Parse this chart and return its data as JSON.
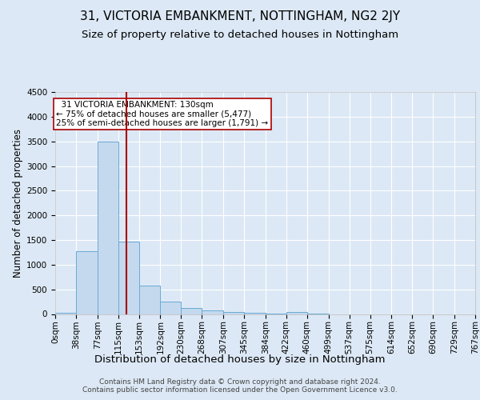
{
  "title1": "31, VICTORIA EMBANKMENT, NOTTINGHAM, NG2 2JY",
  "title2": "Size of property relative to detached houses in Nottingham",
  "xlabel": "Distribution of detached houses by size in Nottingham",
  "ylabel": "Number of detached properties",
  "footer": "Contains HM Land Registry data © Crown copyright and database right 2024.\nContains public sector information licensed under the Open Government Licence v3.0.",
  "bin_edges": [
    0,
    38,
    77,
    115,
    153,
    192,
    230,
    268,
    307,
    345,
    384,
    422,
    460,
    499,
    537,
    575,
    614,
    652,
    690,
    729,
    767
  ],
  "bin_counts": [
    30,
    1280,
    3500,
    1460,
    580,
    245,
    125,
    80,
    40,
    20,
    10,
    40,
    5,
    0,
    0,
    0,
    0,
    0,
    0,
    0
  ],
  "bar_color": "#c5d9ee",
  "bar_edgecolor": "#6aaad4",
  "property_size": 130,
  "vline_color": "#aa0000",
  "annotation_text": "  31 VICTORIA EMBANKMENT: 130sqm\n← 75% of detached houses are smaller (5,477)\n25% of semi-detached houses are larger (1,791) →",
  "annotation_box_edgecolor": "#aa0000",
  "ylim": [
    0,
    4500
  ],
  "background_color": "#dce8f5",
  "plot_bg_color": "#dce8f5",
  "grid_color": "#ffffff",
  "title1_fontsize": 11,
  "title2_fontsize": 9.5,
  "xlabel_fontsize": 9.5,
  "ylabel_fontsize": 8.5,
  "tick_fontsize": 7.5,
  "footer_fontsize": 6.5,
  "ann_fontsize": 7.5
}
